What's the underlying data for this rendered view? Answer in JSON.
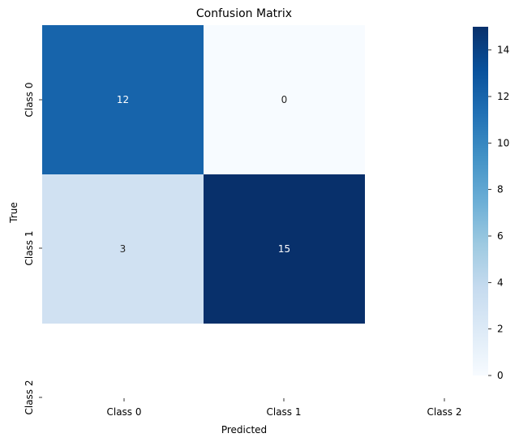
{
  "chart_data": {
    "type": "heatmap",
    "title": "Confusion Matrix",
    "xlabel": "Predicted",
    "ylabel": "True",
    "x_categories": [
      "Class 0",
      "Class 1",
      "Class 2"
    ],
    "y_categories": [
      "Class 0",
      "Class 1",
      "Class 2"
    ],
    "values": [
      [
        12,
        0,
        null
      ],
      [
        3,
        15,
        null
      ],
      [
        null,
        null,
        null
      ]
    ],
    "colorbar": {
      "min": 0,
      "max": 15,
      "ticks": [
        0,
        2,
        4,
        6,
        8,
        10,
        12,
        14
      ],
      "colormap": "Blues"
    },
    "colors": {
      "low": "#f7fbff",
      "high": "#08306b"
    }
  }
}
